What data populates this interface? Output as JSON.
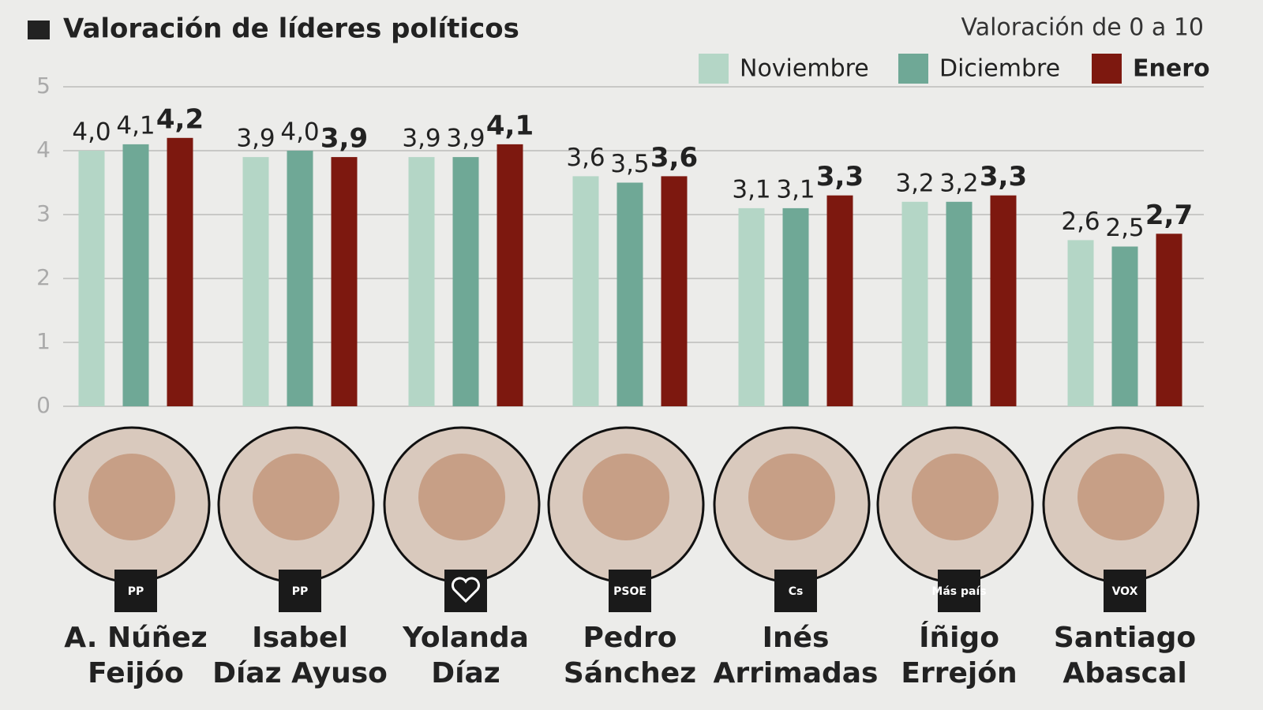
{
  "chart_data": {
    "type": "bar",
    "title": "Valoración de líderes políticos",
    "subtitle": "Valoración de 0 a 10",
    "categories": [
      [
        "A. Núñez",
        "Feijóo"
      ],
      [
        "Isabel",
        "Díaz Ayuso"
      ],
      [
        "Yolanda",
        "Díaz"
      ],
      [
        "Pedro",
        "Sánchez"
      ],
      [
        "Inés",
        "Arrimadas"
      ],
      [
        "Íñigo",
        "Errejón"
      ],
      [
        "Santiago",
        "Abascal"
      ]
    ],
    "parties": [
      "PP",
      "PP",
      "",
      "PSOE",
      "Cs",
      "Más país",
      "VOX"
    ],
    "series": [
      {
        "name": "Noviembre",
        "color": "#b4d6c6",
        "values": [
          4.0,
          3.9,
          3.9,
          3.6,
          3.1,
          3.2,
          2.6
        ],
        "value_labels": [
          "4,0",
          "3,9",
          "3,9",
          "3,6",
          "3,1",
          "3,2",
          "2,6"
        ]
      },
      {
        "name": "Diciembre",
        "color": "#6fa896",
        "values": [
          4.1,
          4.0,
          3.9,
          3.5,
          3.1,
          3.2,
          2.5
        ],
        "value_labels": [
          "4,1",
          "4,0",
          "3,9",
          "3,5",
          "3,1",
          "3,2",
          "2,5"
        ]
      },
      {
        "name": "Enero",
        "color": "#7d180f",
        "values": [
          4.2,
          3.9,
          4.1,
          3.6,
          3.3,
          3.3,
          2.7
        ],
        "value_labels": [
          "4,2",
          "3,9",
          "4,1",
          "3,6",
          "3,3",
          "3,3",
          "2,7"
        ]
      }
    ],
    "ylim": [
      0,
      5
    ],
    "yticks": [
      0,
      1,
      2,
      3,
      4,
      5
    ],
    "grid": true,
    "legend": "top-right"
  }
}
